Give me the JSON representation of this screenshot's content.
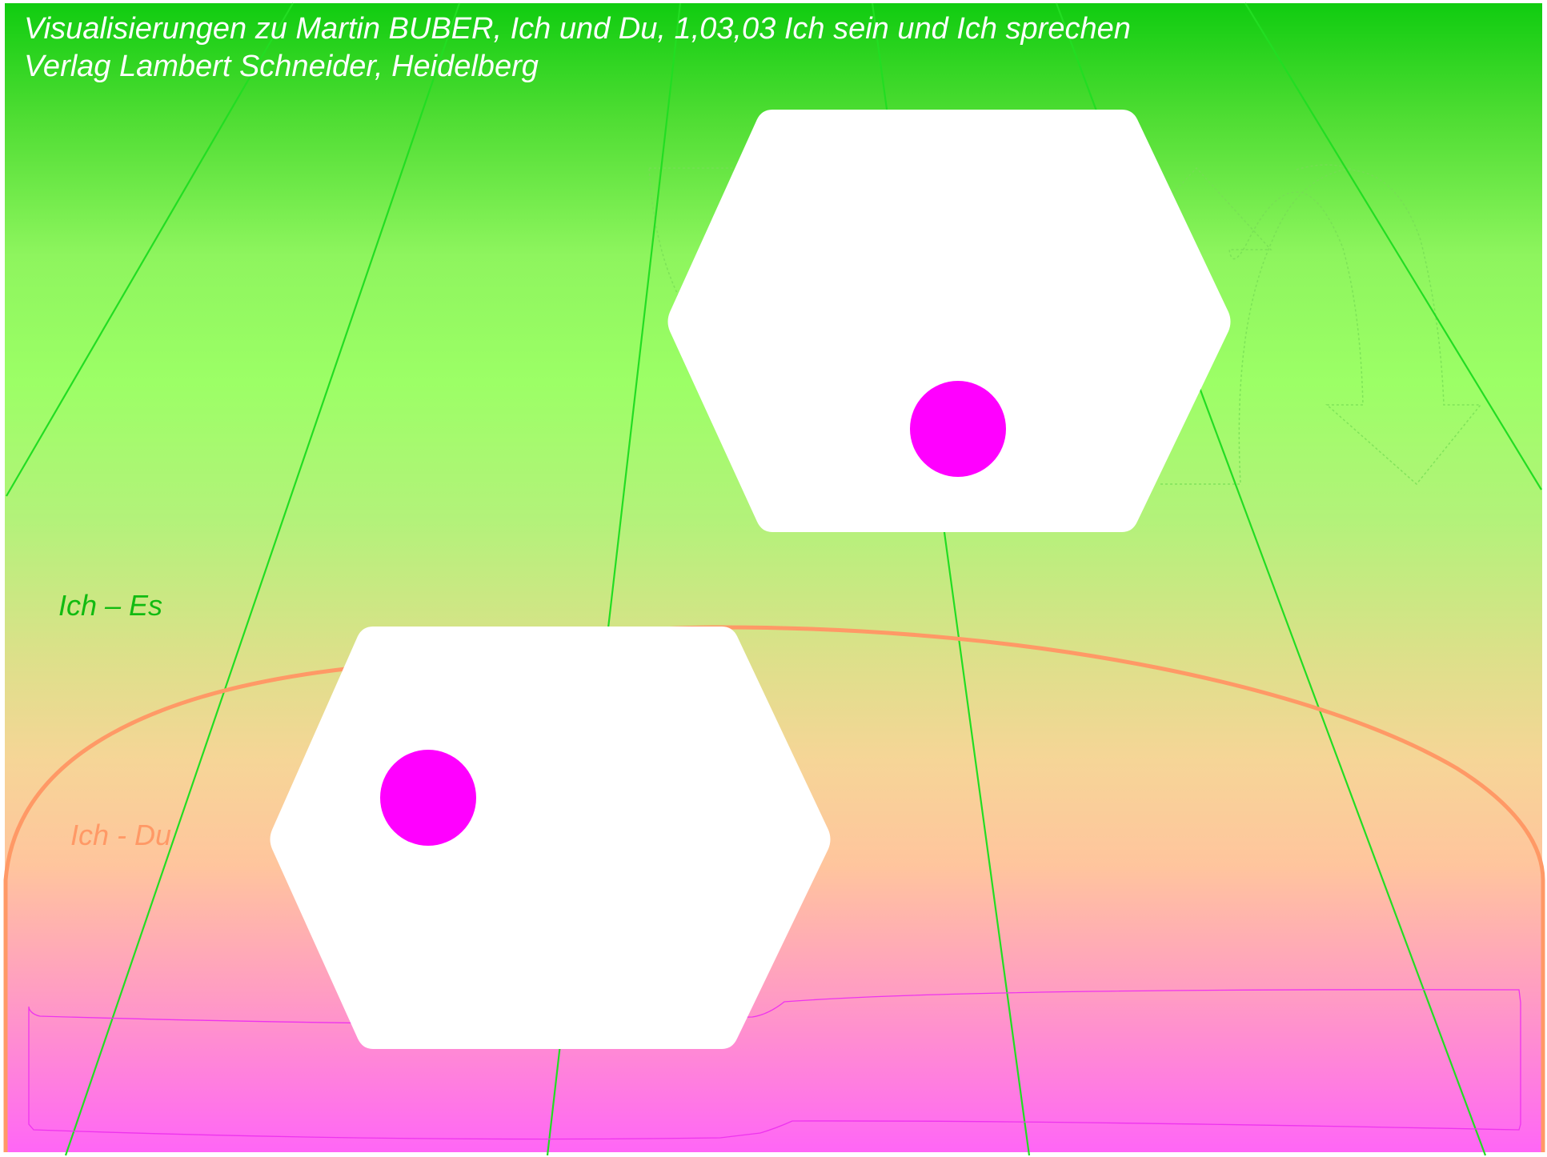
{
  "header": {
    "line1": "Visualisierungen zu Martin BUBER,  Ich und Du,     1,03,03 Ich sein und Ich sprechen",
    "line2": "Verlag Lambert Schneider, Heidelberg"
  },
  "labels": {
    "ich_es": "Ich – Es",
    "ich_du": "Ich - Du"
  },
  "colors": {
    "gradient_top": "#14cc14",
    "gradient_mid": "#99ff66",
    "gradient_lower": "#ffc699",
    "gradient_bottom": "#ff66ff",
    "green_line": "#22dd22",
    "orange": "#ff9966",
    "magenta": "#ff00ff",
    "hexagon": "#ffffff",
    "label_es": "#11bb11",
    "label_du": "#ff9966"
  },
  "icons": {
    "arrow_upper_right": "curved-arrow-icon"
  }
}
